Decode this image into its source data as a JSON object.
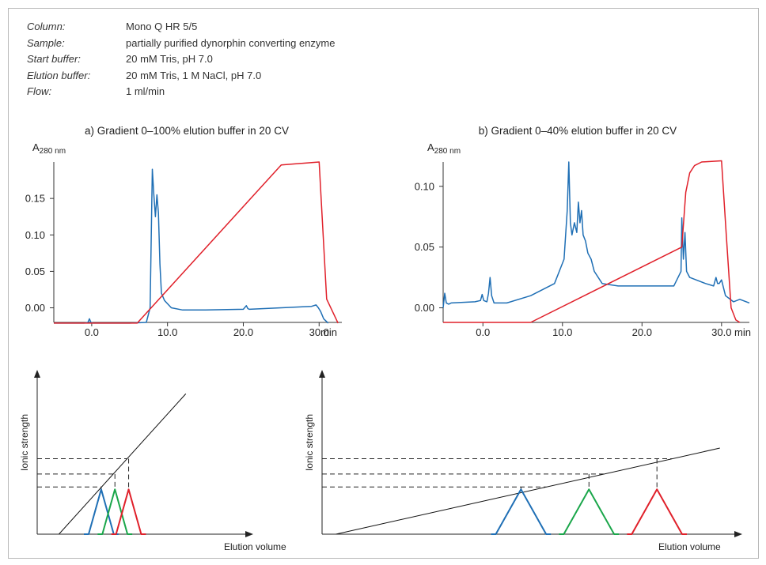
{
  "info": [
    {
      "label": "Column:",
      "value": "Mono Q HR 5/5"
    },
    {
      "label": "Sample:",
      "value": "partially purified dynorphin converting enzyme"
    },
    {
      "label": "Start buffer:",
      "value": "20 mM Tris, pH 7.0"
    },
    {
      "label": "Elution buffer:",
      "value": "20 mM Tris, 1 M NaCl, pH 7.0"
    },
    {
      "label": "Flow:",
      "value": "1 ml/min"
    }
  ],
  "colors": {
    "absorbance": "#1f6fb5",
    "gradient": "#e0202a",
    "peak_blue": "#1f6fb5",
    "peak_green": "#1aa64a",
    "peak_red": "#e0202a"
  },
  "chart_data": [
    {
      "type": "line",
      "title": "a) Gradient 0–100% elution buffer in 20 CV",
      "ylabel_main": "A",
      "ylabel_sub": "280 nm",
      "xunit": "min",
      "xlim": [
        -5,
        33
      ],
      "ylim": [
        -0.02,
        0.2
      ],
      "xticks": [
        0,
        10,
        20,
        30
      ],
      "xtick_labels": [
        "0.0",
        "10.0",
        "20.0",
        "30.0"
      ],
      "yticks": [
        0,
        0.05,
        0.1,
        0.15
      ],
      "ytick_labels": [
        "0.00",
        "0.05",
        "0.10",
        "0.15"
      ],
      "series": [
        {
          "color": "#1f6fb5",
          "x": [
            -5,
            -1,
            -0.5,
            -0.3,
            -0.1,
            0.2,
            5,
            7.2,
            7.7,
            8.0,
            8.2,
            8.4,
            8.6,
            8.8,
            9.0,
            9.2,
            9.6,
            10.5,
            12,
            15,
            20,
            20.4,
            20.6,
            20.8,
            25,
            29,
            29.6,
            29.9,
            30.2,
            30.6,
            31.2
          ],
          "y": [
            -0.021,
            -0.021,
            -0.02,
            -0.015,
            -0.02,
            -0.021,
            -0.021,
            -0.02,
            0.0,
            0.19,
            0.155,
            0.125,
            0.155,
            0.13,
            0.06,
            0.02,
            0.01,
            0.0,
            -0.003,
            -0.003,
            -0.002,
            0.003,
            -0.001,
            -0.002,
            0.0,
            0.002,
            0.004,
            0.0,
            -0.005,
            -0.015,
            -0.021
          ]
        },
        {
          "color": "#e0202a",
          "x": [
            -5,
            6,
            25,
            30,
            31,
            32.5
          ],
          "y": [
            -0.021,
            -0.021,
            0.196,
            0.2,
            0.012,
            -0.021
          ]
        }
      ]
    },
    {
      "type": "line",
      "title": "b) Gradient 0–40% elution buffer in 20 CV",
      "ylabel_main": "A",
      "ylabel_sub": "280 nm",
      "xunit": "min",
      "xlim": [
        -5,
        33.5
      ],
      "ylim": [
        -0.012,
        0.12
      ],
      "xticks": [
        0,
        10,
        20,
        30
      ],
      "xtick_labels": [
        "0.0",
        "10.0",
        "20.0",
        "30.0"
      ],
      "yticks": [
        0,
        0.05,
        0.1
      ],
      "ytick_labels": [
        "0.00",
        "0.05",
        "0.10"
      ],
      "series": [
        {
          "color": "#1f6fb5",
          "x": [
            -5,
            -4.8,
            -4.6,
            -4.3,
            -4,
            -1,
            -0.3,
            -0.1,
            0.1,
            0.5,
            0.7,
            0.9,
            1.1,
            1.4,
            3,
            6,
            9,
            10.2,
            10.6,
            10.8,
            11.0,
            11.2,
            11.5,
            11.8,
            12.0,
            12.2,
            12.4,
            12.6,
            12.9,
            13.2,
            13.6,
            14,
            15,
            17,
            20,
            24,
            24.9,
            25.0,
            25.2,
            25.4,
            25.6,
            26,
            28,
            29,
            29.3,
            29.5,
            29.7,
            30.0,
            30.5,
            31.5,
            32.3,
            33.5
          ],
          "y": [
            0,
            0.012,
            0.004,
            0.003,
            0.004,
            0.005,
            0.006,
            0.011,
            0.006,
            0.005,
            0.012,
            0.025,
            0.01,
            0.004,
            0.004,
            0.01,
            0.02,
            0.04,
            0.08,
            0.12,
            0.07,
            0.06,
            0.07,
            0.062,
            0.087,
            0.07,
            0.08,
            0.06,
            0.055,
            0.045,
            0.04,
            0.03,
            0.02,
            0.018,
            0.018,
            0.018,
            0.03,
            0.074,
            0.04,
            0.062,
            0.03,
            0.025,
            0.02,
            0.018,
            0.025,
            0.02,
            0.02,
            0.023,
            0.01,
            0.005,
            0.007,
            0.004
          ]
        },
        {
          "color": "#e0202a",
          "x": [
            -5,
            6,
            25,
            25.5,
            26,
            26.6,
            27.5,
            30,
            30.6,
            31.2,
            31.8,
            32.3
          ],
          "y": [
            -0.012,
            -0.012,
            0.05,
            0.095,
            0.111,
            0.117,
            0.12,
            0.121,
            0.06,
            0.0,
            -0.01,
            -0.012
          ]
        }
      ]
    },
    {
      "type": "diagram-line",
      "ylabel": "Ionic strength",
      "xlabel": "Elution volume",
      "gradient_line": {
        "x": [
          0.95,
          6.5
        ],
        "y": [
          0,
          5.95
        ]
      },
      "levels": [
        2.0,
        2.55,
        3.2
      ],
      "peaks": [
        {
          "color": "#1f6fb5",
          "center": 2.8,
          "halfwidth": 0.55,
          "height": 1.9
        },
        {
          "color": "#1aa64a",
          "center": 3.4,
          "halfwidth": 0.55,
          "height": 1.9
        },
        {
          "color": "#e0202a",
          "center": 4.0,
          "halfwidth": 0.55,
          "height": 1.9
        }
      ],
      "xlim": [
        0,
        9
      ],
      "ylim": [
        0,
        6.8
      ]
    },
    {
      "type": "diagram-line",
      "ylabel": "Ionic strength",
      "xlabel": "Elution volume",
      "gradient_line": {
        "x": [
          0.55,
          15.8
        ],
        "y": [
          0,
          3.65
        ]
      },
      "levels": [
        2.0,
        2.55,
        3.2
      ],
      "peaks": [
        {
          "color": "#1f6fb5",
          "center": 7.9,
          "halfwidth": 1.0,
          "height": 1.9
        },
        {
          "color": "#1aa64a",
          "center": 10.6,
          "halfwidth": 1.0,
          "height": 1.9
        },
        {
          "color": "#e0202a",
          "center": 13.3,
          "halfwidth": 1.0,
          "height": 1.9
        }
      ],
      "xlim": [
        0,
        16.5
      ],
      "ylim": [
        0,
        6.8
      ]
    }
  ]
}
